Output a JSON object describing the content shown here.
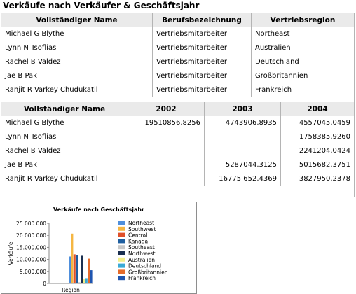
{
  "page_title": "Verkäufe nach Verkäufer & Geschäftsjahr",
  "table1": {
    "headers": [
      "Vollständiger Name",
      "Berufsbezeichnung",
      "Vertriebsregion"
    ],
    "rows": [
      [
        "Michael G Blythe",
        "Vertriebsmitarbeiter",
        "Northeast"
      ],
      [
        "Lynn N Tsoflias",
        "Vertriebsmitarbeiter",
        "Australien"
      ],
      [
        "Rachel B Valdez",
        "Vertriebsmitarbeiter",
        "Deutschland"
      ],
      [
        "Jae B Pak",
        "Vertriebsmitarbeiter",
        "Großbritannien"
      ],
      [
        "Ranjit R Varkey Chudukatil",
        "Vertriebsmitarbeiter",
        "Frankreich"
      ]
    ]
  },
  "table2": {
    "headers": [
      "Vollständiger Name",
      "2002",
      "2003",
      "2004"
    ],
    "rows": [
      [
        "Michael G Blythe",
        "19510856.8256",
        "4743906.8935",
        "4557045.0459"
      ],
      [
        "Lynn N Tsoflias",
        "",
        "",
        "1758385.9260"
      ],
      [
        "Rachel B Valdez",
        "",
        "",
        "2241204.0424"
      ],
      [
        "Jae B Pak",
        "",
        "5287044.3125",
        "5015682.3751"
      ],
      [
        "Ranjit R Varkey Chudukatil",
        "",
        "16775 652.4369",
        "3827950.2378"
      ]
    ]
  },
  "chart_data": {
    "type": "bar",
    "title": "Verkäufe nach Geschäftsjahr",
    "xlabel": "Region",
    "ylabel": "Verkäufe",
    "ylim": [
      0,
      25000000
    ],
    "yticks": [
      "0",
      "5.000.000",
      "10.000.000",
      "15.000.000",
      "20.000.000",
      "25.000.000"
    ],
    "legend_position": "right",
    "series": [
      {
        "name": "Northeast",
        "color": "#4f8fdc",
        "value": 11200000
      },
      {
        "name": "Southwest",
        "color": "#f5b642",
        "value": 20700000
      },
      {
        "name": "Central",
        "color": "#e0502a",
        "value": 12100000
      },
      {
        "name": "Kanada",
        "color": "#1f5fa0",
        "value": 11700000
      },
      {
        "name": "Southeast",
        "color": "#c8c8c8",
        "value": 500000
      },
      {
        "name": "Northwest",
        "color": "#1a2f50",
        "value": 11500000
      },
      {
        "name": "Australien",
        "color": "#f2ef8a",
        "value": 1800000
      },
      {
        "name": "Deutschland",
        "color": "#3aaad6",
        "value": 2200000
      },
      {
        "name": "Großbritannien",
        "color": "#e56b2a",
        "value": 10300000
      },
      {
        "name": "Frankreich",
        "color": "#1f55b0",
        "value": 5500000
      }
    ]
  }
}
